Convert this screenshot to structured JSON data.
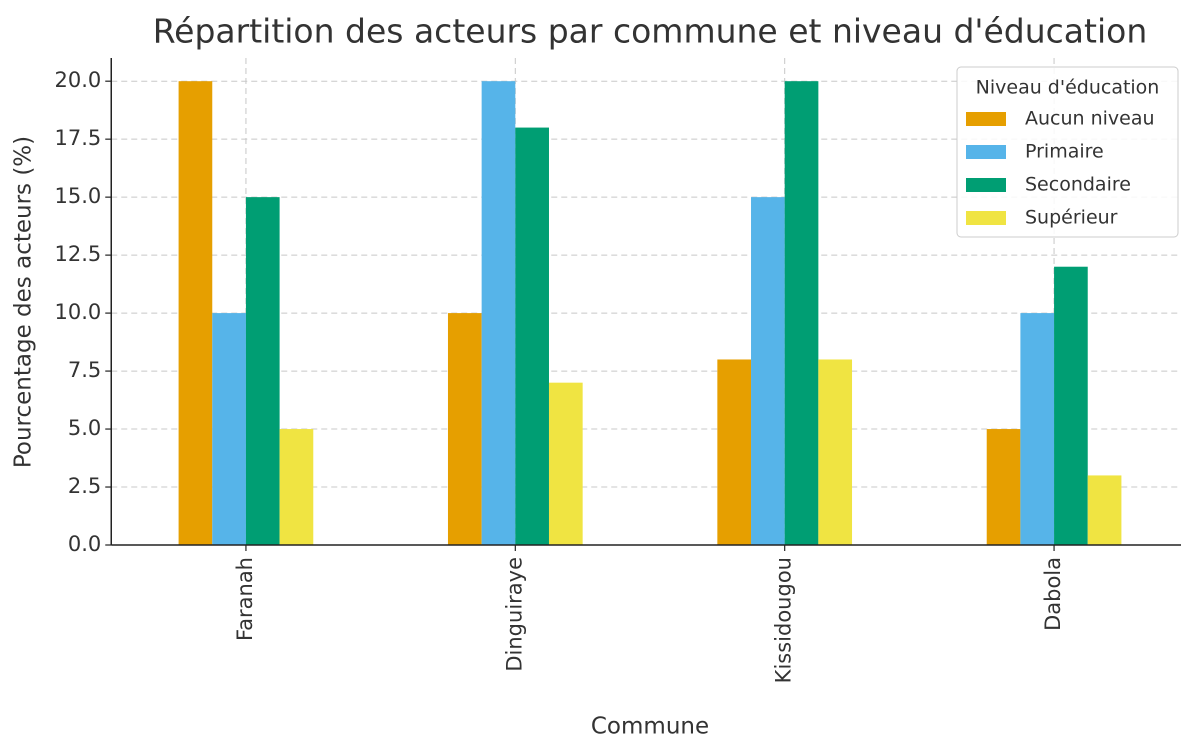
{
  "chart_data": {
    "type": "bar",
    "title": "Répartition des acteurs par commune et niveau d'éducation",
    "x_label": "Commune",
    "y_label": "Pourcentage des acteurs (%)",
    "categories": [
      "Faranah",
      "Dinguiraye",
      "Kissidougou",
      "Dabola"
    ],
    "series": [
      {
        "name": "Aucun niveau",
        "color": "#E69F00",
        "values": [
          20,
          10,
          8,
          5
        ]
      },
      {
        "name": "Primaire",
        "color": "#56B4E9",
        "values": [
          10,
          20,
          15,
          10
        ]
      },
      {
        "name": "Secondaire",
        "color": "#009E73",
        "values": [
          15,
          18,
          20,
          12
        ]
      },
      {
        "name": "Supérieur",
        "color": "#F0E442",
        "values": [
          5,
          7,
          8,
          3
        ]
      }
    ],
    "ylim": [
      0,
      21
    ],
    "yticks": [
      {
        "value": 0,
        "label": "0.0"
      },
      {
        "value": 2.5,
        "label": "2.5"
      },
      {
        "value": 5,
        "label": "5.0"
      },
      {
        "value": 7.5,
        "label": "7.5"
      },
      {
        "value": 10,
        "label": "10.0"
      },
      {
        "value": 12.5,
        "label": "12.5"
      },
      {
        "value": 15,
        "label": "15.0"
      },
      {
        "value": 17.5,
        "label": "17.5"
      },
      {
        "value": 20,
        "label": "20.0"
      }
    ],
    "grid": true,
    "legend_title": "Niveau d'éducation",
    "legend_position": "upper right"
  }
}
